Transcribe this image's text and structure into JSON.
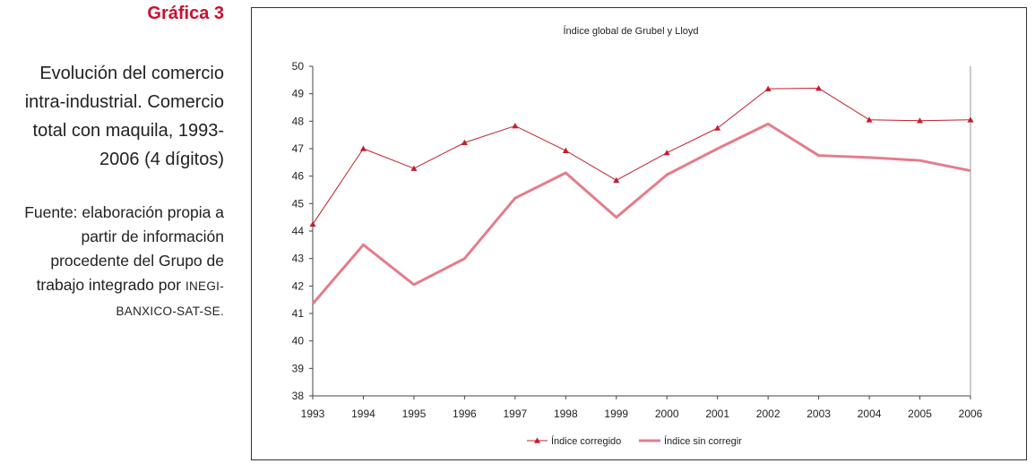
{
  "figure": {
    "label": "Gráfica 3",
    "caption": "Evolución del comercio intra-industrial. Comercio total con maquila, 1993-2006 (4 dígitos)",
    "source_text": "Fuente: elaboración propia a partir de información procedente del Grupo de trabajo integrado por",
    "source_agencies": "INEGI-BANXICO-SAT-SE."
  },
  "colors": {
    "accent": "#c8102e",
    "corrected": "#c0202e",
    "uncorrected": "#e47c8c"
  },
  "chart_data": {
    "type": "line",
    "title": "Índice global de Grubel y Lloyd",
    "xlabel": "",
    "ylabel": "",
    "ylim": [
      38,
      50
    ],
    "yticks": [
      "50",
      "49",
      "48",
      "47",
      "46",
      "45",
      "44",
      "43",
      "42",
      "41",
      "40",
      "39",
      "38"
    ],
    "categories": [
      "1993",
      "1994",
      "1995",
      "1996",
      "1997",
      "1998",
      "1999",
      "2000",
      "2001",
      "2002",
      "2003",
      "2004",
      "2005",
      "2006"
    ],
    "grid": false,
    "legend": "bottom",
    "series": [
      {
        "name": "Índice corregido",
        "marker": "triangle",
        "values": [
          44.25,
          47.0,
          46.28,
          47.22,
          47.83,
          46.93,
          45.85,
          46.85,
          47.75,
          49.18,
          49.2,
          48.05,
          48.02,
          48.05
        ]
      },
      {
        "name": "Índice sin corregir",
        "marker": "none",
        "values": [
          41.35,
          43.5,
          42.05,
          43.0,
          45.2,
          46.12,
          44.5,
          46.05,
          47.0,
          47.9,
          46.75,
          46.68,
          46.57,
          46.2
        ]
      }
    ]
  }
}
